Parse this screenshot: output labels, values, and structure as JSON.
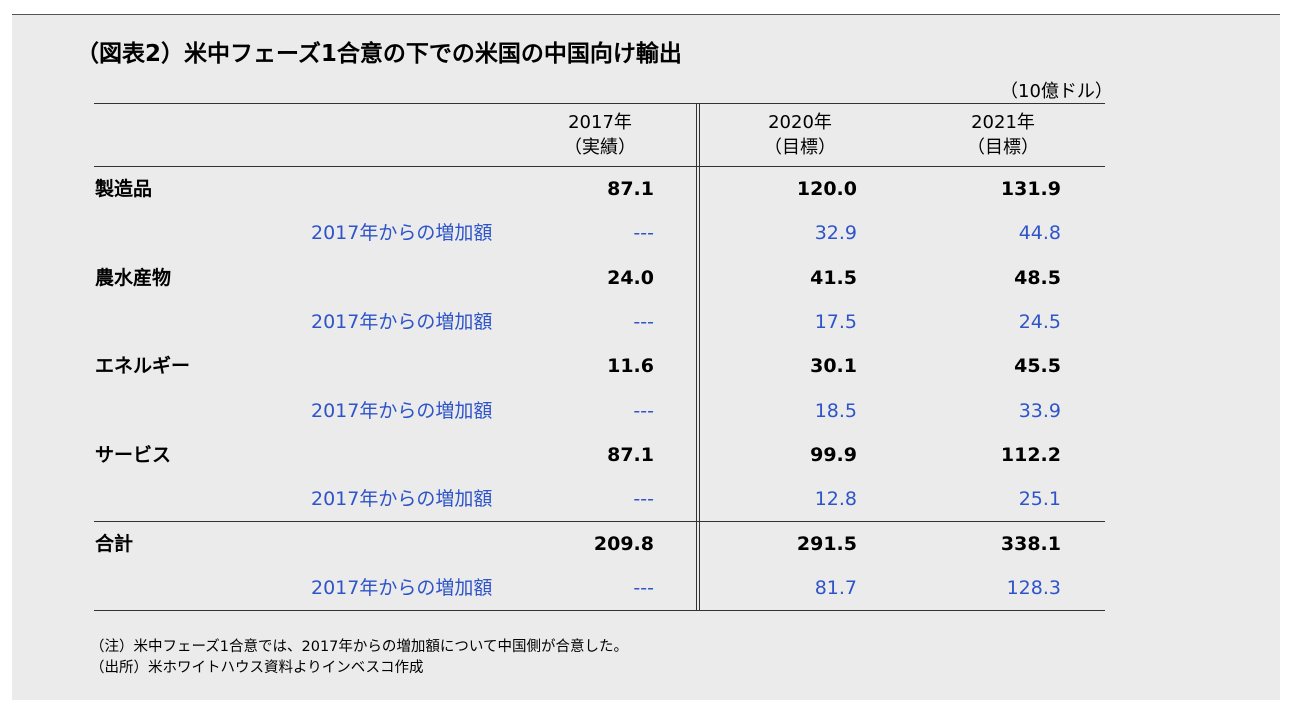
{
  "title": "（図表2）米中フェーズ1合意の下での米国の中国向け輸出",
  "unit": "（10億ドル）",
  "columns": [
    {
      "year": "2017年",
      "note": "（実績）"
    },
    {
      "year": "2020年",
      "note": "（目標）"
    },
    {
      "year": "2021年",
      "note": "（目標）"
    }
  ],
  "rows": [
    {
      "name": "製造品",
      "values": [
        "87.1",
        "120.0",
        "131.9"
      ],
      "sub_label": "2017年からの増加額",
      "sub_values": [
        "---",
        "32.9",
        "44.8"
      ]
    },
    {
      "name": "農水産物",
      "values": [
        "24.0",
        "41.5",
        "48.5"
      ],
      "sub_label": "2017年からの増加額",
      "sub_values": [
        "---",
        "17.5",
        "24.5"
      ]
    },
    {
      "name": "エネルギー",
      "values": [
        "11.6",
        "30.1",
        "45.5"
      ],
      "sub_label": "2017年からの増加額",
      "sub_values": [
        "---",
        "18.5",
        "33.9"
      ]
    },
    {
      "name": "サービス",
      "values": [
        "87.1",
        "99.9",
        "112.2"
      ],
      "sub_label": "2017年からの増加額",
      "sub_values": [
        "---",
        "12.8",
        "25.1"
      ]
    },
    {
      "name": "合計",
      "values": [
        "209.8",
        "291.5",
        "338.1"
      ],
      "sub_label": "2017年からの増加額",
      "sub_values": [
        "---",
        "81.7",
        "128.3"
      ]
    }
  ],
  "notes": [
    "（注）米中フェーズ1合意では、2017年からの増加額について中国側が合意した。",
    "（出所）米ホワイトハウス資料よりインベスコ作成"
  ],
  "colors": {
    "accent_blue": "#2e54c9",
    "panel": "#ebebeb"
  }
}
